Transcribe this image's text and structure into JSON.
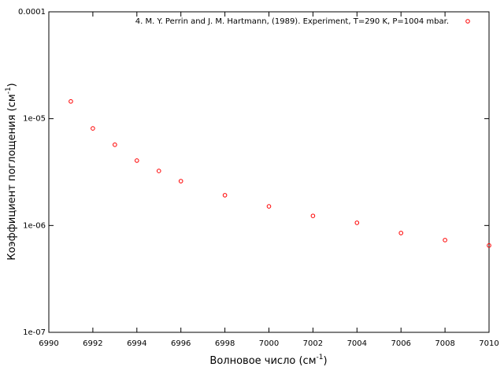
{
  "chart_data": {
    "type": "scatter",
    "xlabel": [
      "Волновое число (см",
      "-1",
      ")"
    ],
    "ylabel": [
      "Коэффициент поглощения (см",
      "-1",
      ")"
    ],
    "x": [
      6991,
      6992,
      6993,
      6994,
      6995,
      6996,
      6998,
      7000,
      7002,
      7004,
      7006,
      7008,
      7010
    ],
    "series": [
      {
        "name": "4. M. Y. Perrin and J. M. Hartmann, (1989). Experiment, T=290 K, P=1004 mbar.",
        "color": "#ff0000",
        "values": [
          1.45e-05,
          8.1e-06,
          5.7e-06,
          4.05e-06,
          3.24e-06,
          2.6e-06,
          1.92e-06,
          1.51e-06,
          1.23e-06,
          1.06e-06,
          8.5e-07,
          7.3e-07,
          6.5e-07
        ]
      }
    ],
    "xlim": [
      6990,
      7010
    ],
    "xticks": [
      6990,
      6992,
      6994,
      6996,
      6998,
      7000,
      7002,
      7004,
      7006,
      7008,
      7010
    ],
    "ylim": [
      1e-07,
      0.0001
    ],
    "ylog": true,
    "yticks": [
      {
        "value": 1e-07,
        "label": "1e-07"
      },
      {
        "value": 1e-06,
        "label": "1e-06"
      },
      {
        "value": 1e-05,
        "label": "1e-05"
      },
      {
        "value": 0.0001,
        "label": "0.0001"
      }
    ],
    "grid": false,
    "legend": "top-right"
  }
}
